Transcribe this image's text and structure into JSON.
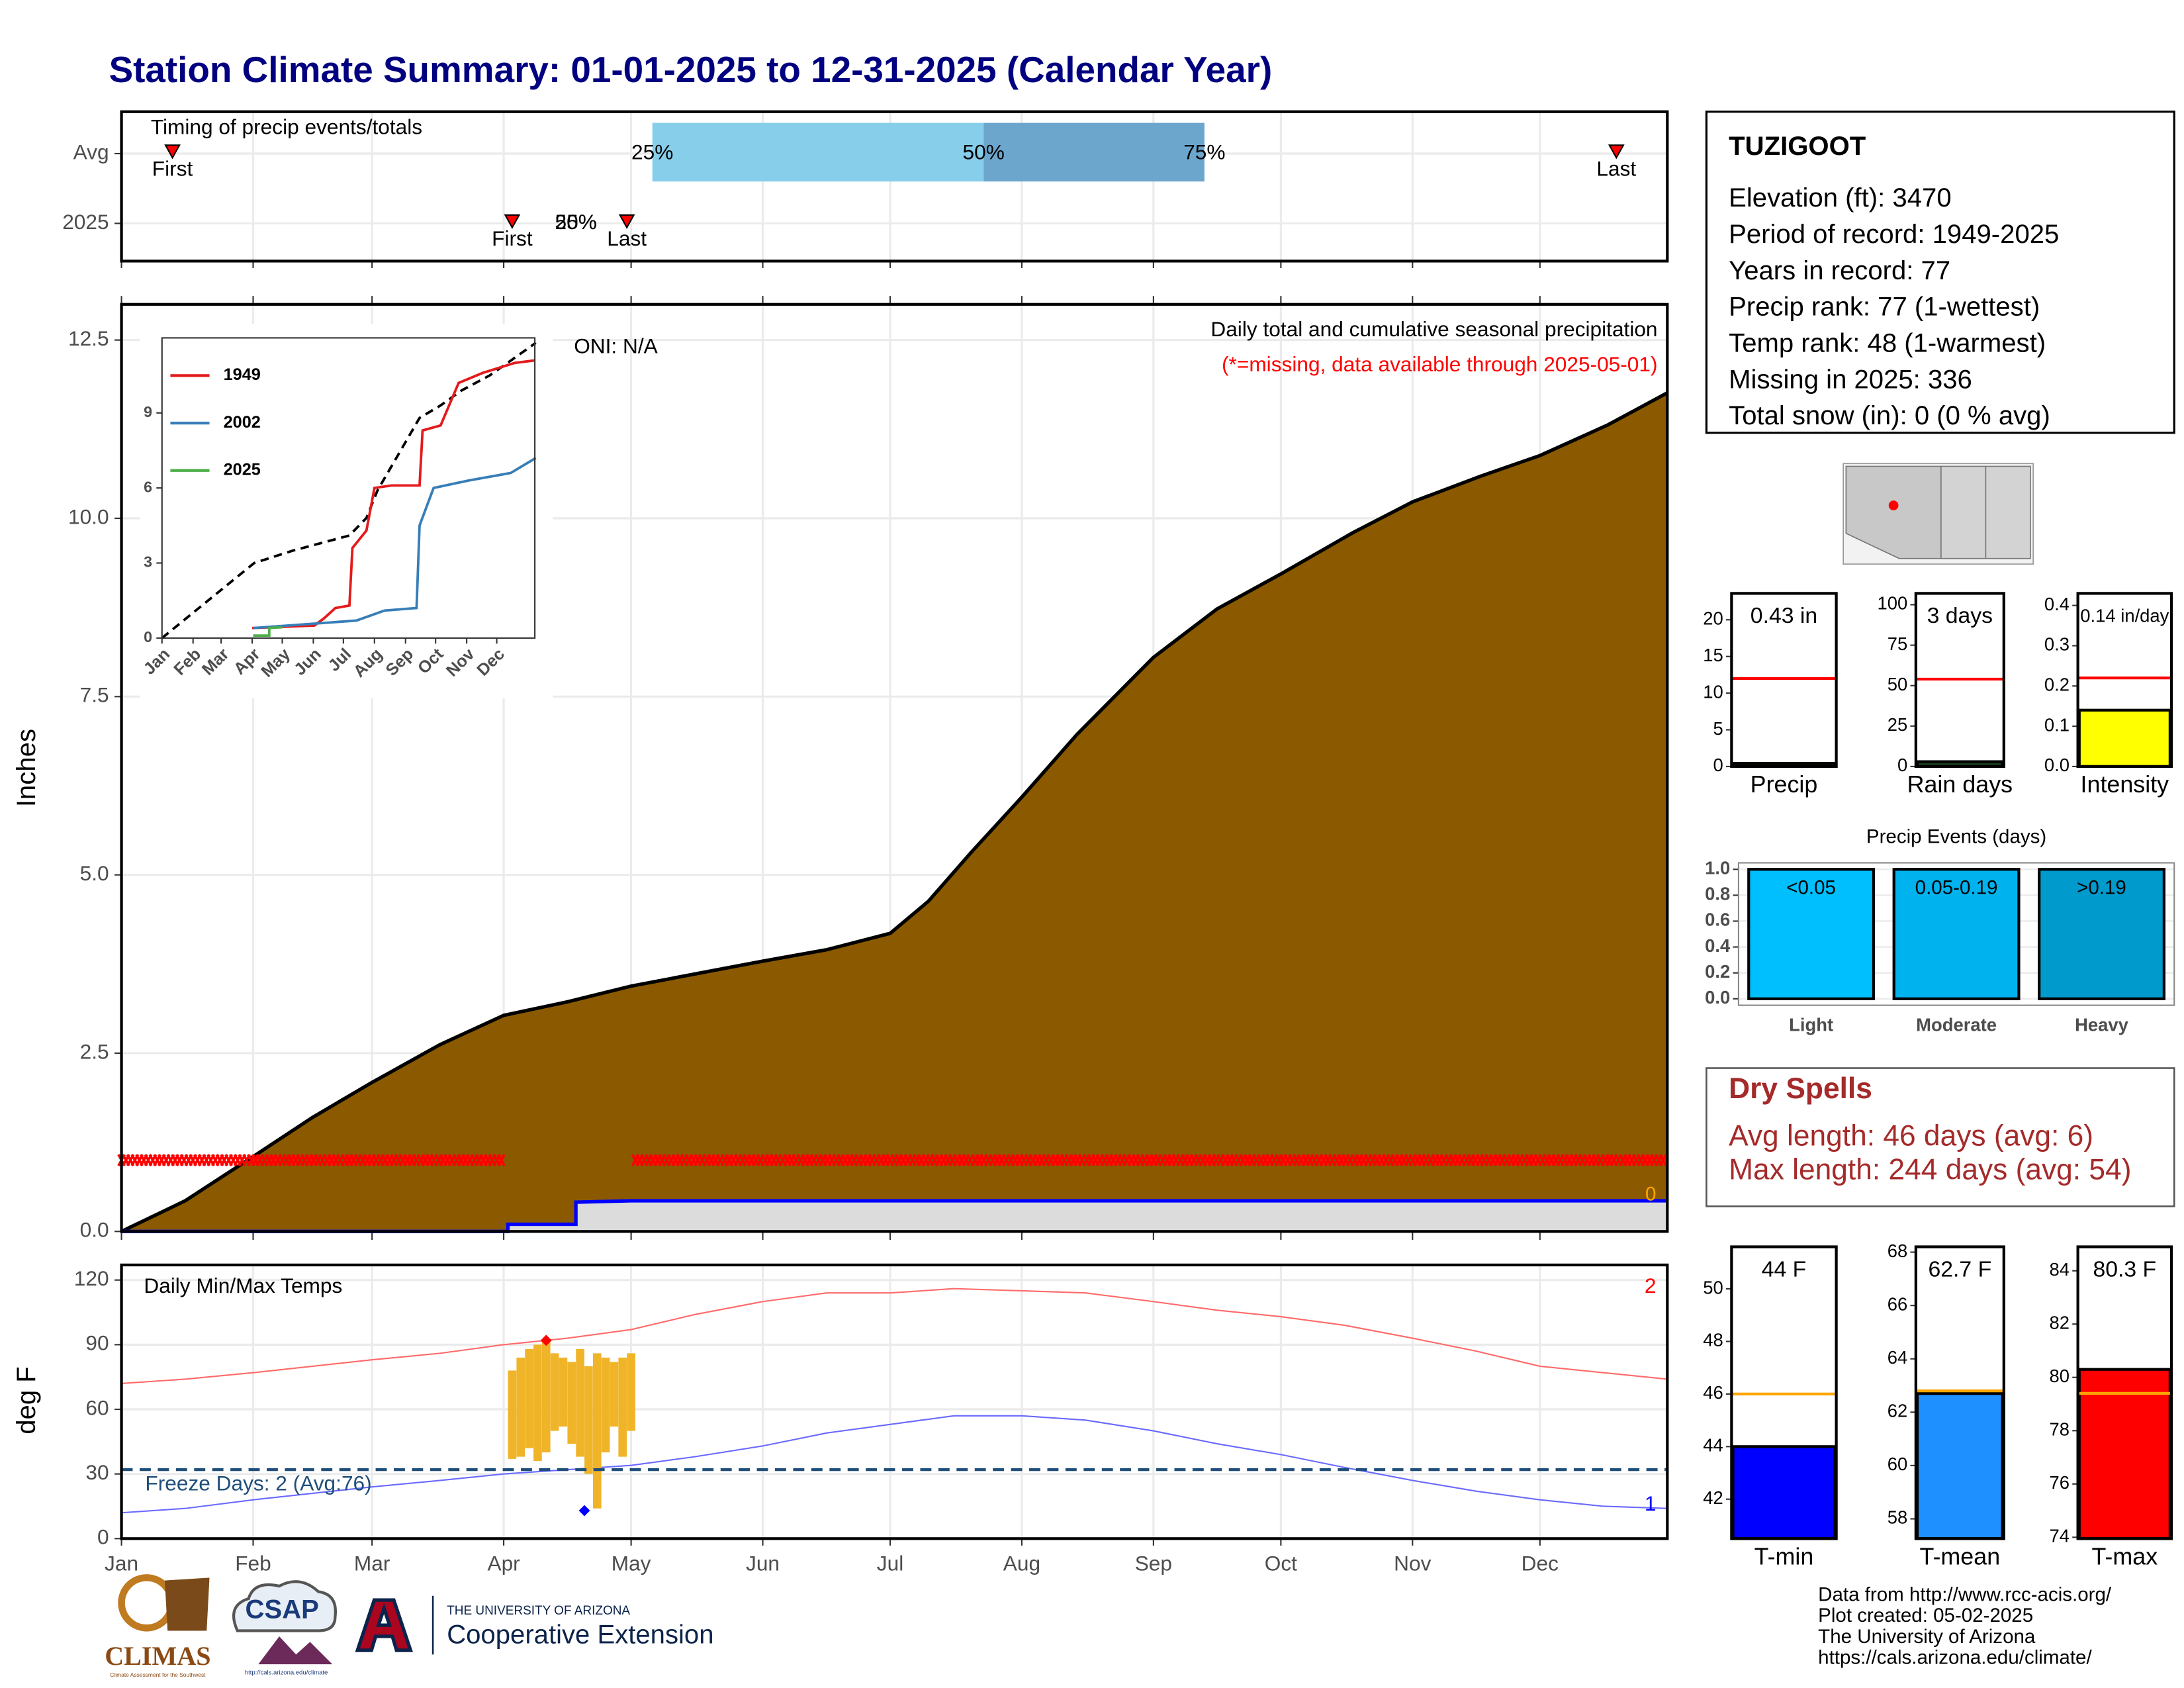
{
  "title": "Station Climate Summary: 01-01-2025 to 12-31-2025 (Calendar Year)",
  "chart_data": [
    {
      "type": "timing",
      "title": "Timing of precip events/totals",
      "xlim": [
        0,
        364
      ],
      "colors": [
        "#87ceeb",
        "#6ca6cd"
      ],
      "marker_color": "#ff0000",
      "rows": [
        {
          "label": "Avg",
          "events": [
            {
              "label": "First",
              "day": 12
            },
            {
              "label": "Last",
              "day": 352
            }
          ],
          "quantiles": [
            {
              "label": "25%",
              "day": 125
            },
            {
              "label": "50%",
              "day": 203
            },
            {
              "label": "75%",
              "day": 255
            }
          ]
        },
        {
          "label": "2025",
          "events": [
            {
              "label": "First",
              "day": 92
            },
            {
              "label": "Last",
              "day": 119
            }
          ],
          "quantiles": [
            {
              "label": "25%",
              "day": 107
            },
            {
              "label": "50%",
              "day": 107
            }
          ]
        }
      ]
    },
    {
      "type": "area",
      "title": "Daily total and cumulative seasonal precipitation",
      "subtitle": "(*=missing, data available through 2025-05-01)",
      "annotation": "ONI: N/A",
      "ylabel": "Inches",
      "xlim": [
        0,
        364
      ],
      "ylim": [
        0,
        13
      ],
      "yticks": [
        {
          "value": 0,
          "label": "0.0"
        },
        2.5,
        {
          "value": 5,
          "label": "5.0"
        },
        7.5,
        {
          "value": 10,
          "label": "10.0"
        },
        12.5
      ],
      "grid": true,
      "series": [
        {
          "color": "#8b5a00",
          "x": [
            0,
            15,
            31,
            45,
            59,
            75,
            90,
            105,
            120,
            135,
            151,
            166,
            181,
            190,
            200,
            212,
            225,
            243,
            258,
            273,
            290,
            304,
            320,
            334,
            350,
            364
          ],
          "values": [
            0,
            0.43,
            1.05,
            1.6,
            2.09,
            2.62,
            3.03,
            3.22,
            3.44,
            3.61,
            3.79,
            3.95,
            4.18,
            4.63,
            5.31,
            6.09,
            6.97,
            8.05,
            8.73,
            9.22,
            9.8,
            10.23,
            10.59,
            10.88,
            11.31,
            11.76
          ]
        },
        {
          "color": "#0000ff",
          "fill": "#dcdcdc",
          "x": [
            0,
            91,
            91,
            107,
            107,
            120,
            364
          ],
          "values": [
            0,
            0,
            0.1,
            0.1,
            0.41,
            0.43,
            0.43
          ],
          "end_label": "0",
          "end_label_color": "#ffa500"
        }
      ],
      "missing": {
        "ranges": [
          [
            0,
            90
          ],
          [
            121,
            364
          ]
        ],
        "y": 1,
        "color": "#ff0000"
      }
    },
    {
      "type": "line",
      "xlim": [
        0,
        372
      ],
      "ylim": [
        0,
        12
      ],
      "yticks": [
        0,
        3,
        6,
        9
      ],
      "xticks": [
        {
          "value": 0,
          "label": "Jan"
        },
        {
          "value": 31,
          "label": "Feb"
        },
        {
          "value": 59,
          "label": "Mar"
        },
        {
          "value": 90,
          "label": "Apr"
        },
        {
          "value": 120,
          "label": "May"
        },
        {
          "value": 151,
          "label": "Jun"
        },
        {
          "value": 181,
          "label": "Jul"
        },
        {
          "value": 212,
          "label": "Aug"
        },
        {
          "value": 243,
          "label": "Sep"
        },
        {
          "value": 273,
          "label": "Oct"
        },
        {
          "value": 304,
          "label": "Nov"
        },
        {
          "value": 334,
          "label": "Dec"
        }
      ],
      "series": [
        {
          "name": "1949",
          "color": "#e41a1c",
          "x": [
            90,
            152,
            162,
            173,
            187,
            190,
            204,
            212,
            229,
            257,
            260,
            278,
            296,
            320,
            352,
            372
          ],
          "values": [
            0.4,
            0.5,
            0.8,
            1.2,
            1.3,
            3.6,
            4.3,
            6.0,
            6.1,
            6.1,
            8.3,
            8.5,
            10.2,
            10.6,
            11.0,
            11.1
          ]
        },
        {
          "name": "2002",
          "color": "#377eb8",
          "x": [
            91,
            194,
            222,
            254,
            257,
            271,
            306,
            348,
            373
          ],
          "values": [
            0.4,
            0.7,
            1.1,
            1.2,
            4.5,
            6.0,
            6.3,
            6.6,
            7.2
          ]
        },
        {
          "name": "2025",
          "color": "#4daf4a",
          "x": [
            91,
            107,
            107,
            120
          ],
          "values": [
            0.1,
            0.1,
            0.4,
            0.43
          ]
        }
      ],
      "average": {
        "color": "#000000",
        "x": [
          0,
          92,
          131,
          187,
          204,
          215,
          257,
          278,
          299,
          327,
          373
        ],
        "values": [
          0,
          3.0,
          3.5,
          4.1,
          4.8,
          5.9,
          8.8,
          9.3,
          9.9,
          10.5,
          11.8
        ]
      }
    },
    {
      "type": "temperature",
      "title": "Daily Min/Max Temps",
      "ylabel": "deg F",
      "xlim": [
        0,
        364
      ],
      "ylim": [
        0,
        127
      ],
      "yticks": [
        0,
        30,
        60,
        90,
        120
      ],
      "grid": true,
      "xticks": [
        {
          "value": 0,
          "label": "Jan"
        },
        {
          "value": 31,
          "label": "Feb"
        },
        {
          "value": 59,
          "label": "Mar"
        },
        {
          "value": 90,
          "label": "Apr"
        },
        {
          "value": 120,
          "label": "May"
        },
        {
          "value": 151,
          "label": "Jun"
        },
        {
          "value": 181,
          "label": "Jul"
        },
        {
          "value": 212,
          "label": "Aug"
        },
        {
          "value": 243,
          "label": "Sep"
        },
        {
          "value": 273,
          "label": "Oct"
        },
        {
          "value": 304,
          "label": "Nov"
        },
        {
          "value": 334,
          "label": "Dec"
        }
      ],
      "x": [
        0,
        15,
        31,
        45,
        59,
        75,
        90,
        105,
        120,
        135,
        151,
        166,
        181,
        196,
        212,
        227,
        243,
        258,
        273,
        288,
        304,
        319,
        334,
        349,
        364
      ],
      "series": [
        {
          "color": "#ff6a6a",
          "values": [
            72,
            74,
            77,
            80,
            83,
            86,
            90,
            93,
            97,
            104,
            110,
            114,
            114,
            116,
            115,
            114,
            110,
            106,
            103,
            99,
            93,
            87,
            80,
            77,
            74
          ],
          "count_label": "2"
        },
        {
          "color": "#6a6aff",
          "values": [
            12,
            14,
            18,
            21,
            24,
            27,
            30,
            32,
            34,
            38,
            43,
            49,
            53,
            57,
            57,
            55,
            50,
            44,
            39,
            33,
            27,
            22,
            18,
            15,
            14
          ],
          "count_label": "1"
        }
      ],
      "observed": {
        "color": "#f0b429",
        "x": [
          92,
          94,
          96,
          98,
          100,
          102,
          104,
          106,
          108,
          110,
          112,
          114,
          116,
          118,
          120
        ],
        "tmax": [
          78,
          84,
          88,
          90,
          92,
          86,
          84,
          82,
          88,
          80,
          86,
          84,
          82,
          84,
          86
        ],
        "tmin": [
          37,
          38,
          42,
          36,
          40,
          50,
          52,
          44,
          38,
          30,
          14,
          40,
          52,
          38,
          50
        ]
      },
      "freeze": {
        "value": 32,
        "label": "Freeze Days: 2 (Avg:76)",
        "color": "#1f4e79"
      },
      "records": [
        {
          "x": 100,
          "value": 92,
          "color": "#ff0000"
        },
        {
          "x": 109,
          "value": 13,
          "color": "#0000ff"
        }
      ]
    },
    {
      "type": "bar",
      "categories": [
        "Precip"
      ],
      "values": [
        0.43
      ],
      "value_labels": [
        "0.43 in"
      ],
      "avg": [
        12
      ],
      "avg_color": "#ff0000",
      "color": "#2d2d00",
      "ylim": [
        0,
        23.6
      ],
      "yticks": [
        0,
        5,
        10,
        15,
        20
      ]
    },
    {
      "type": "bar",
      "categories": [
        "Rain days"
      ],
      "values": [
        3
      ],
      "value_labels": [
        "3 days"
      ],
      "avg": [
        54
      ],
      "avg_color": "#ff0000",
      "color": "#1a3d1a",
      "ylim": [
        0,
        107
      ],
      "yticks": [
        0,
        25,
        50,
        75,
        100
      ]
    },
    {
      "type": "bar",
      "categories": [
        "Intensity"
      ],
      "values": [
        0.14
      ],
      "value_labels": [
        "0.14 in/day"
      ],
      "avg": [
        0.22
      ],
      "avg_color": "#ff0000",
      "color": "#ffff00",
      "ylim": [
        0,
        0.43
      ],
      "yticks": [
        {
          "value": 0,
          "label": "0.0"
        },
        0.1,
        0.2,
        0.3,
        0.4
      ]
    },
    {
      "type": "bar",
      "title": "Precip Events (days)",
      "categories": [
        "Light",
        "Moderate",
        "Heavy"
      ],
      "values": [
        1,
        1,
        1
      ],
      "bar_labels": [
        "<0.05",
        "0.05-0.19",
        ">0.19"
      ],
      "colors": [
        "#00bfff",
        "#00b2ee",
        "#009acd"
      ],
      "ylim": [
        -0.05,
        1.05
      ],
      "yticks": [
        {
          "value": 0,
          "label": "0.0"
        },
        0.2,
        0.4,
        0.6,
        0.8,
        {
          "value": 1,
          "label": "1.0"
        }
      ],
      "grid": true
    },
    {
      "type": "bar",
      "categories": [
        "T-min"
      ],
      "values": [
        44
      ],
      "value_labels": [
        "44 F"
      ],
      "avg": [
        46
      ],
      "avg_color": "#ffa500",
      "color": "#0000ff",
      "ylim": [
        40.5,
        51.6
      ],
      "yticks": [
        42,
        44,
        46,
        48,
        50
      ]
    },
    {
      "type": "bar",
      "categories": [
        "T-mean"
      ],
      "values": [
        62.7
      ],
      "value_labels": [
        "62.7 F"
      ],
      "avg": [
        62.8
      ],
      "avg_color": "#ffa500",
      "color": "#1e90ff",
      "ylim": [
        57.26,
        68.2
      ],
      "yticks": [
        58,
        60,
        62,
        64,
        66,
        68
      ]
    },
    {
      "type": "bar",
      "categories": [
        "T-max"
      ],
      "values": [
        80.3
      ],
      "value_labels": [
        "80.3 F"
      ],
      "avg": [
        79.4
      ],
      "avg_color": "#ffa500",
      "color": "#ff0000",
      "ylim": [
        73.95,
        84.9
      ],
      "yticks": [
        74,
        76,
        78,
        80,
        82,
        84
      ]
    }
  ],
  "station": {
    "name": "TUZIGOOT",
    "lines": [
      "Elevation (ft): 3470",
      "Period of record: 1949-2025",
      "Years in record: 77",
      "Precip rank: 77 (1-wettest)",
      "Temp rank: 48 (1-warmest)",
      "Missing in 2025: 336",
      "Total snow (in): 0 (0 % avg)"
    ]
  },
  "dry_spells": {
    "title": "Dry Spells",
    "lines": [
      "Avg length: 46 days (avg: 6)",
      "Max length: 244 days (avg: 54)"
    ]
  },
  "footer": [
    "Data from http://www.rcc-acis.org/",
    "Plot created: 05-02-2025",
    "The University of Arizona",
    "https://cals.arizona.edu/climate/"
  ],
  "logos": {
    "climas": "CLIMAS",
    "climas_tagline": "Climate Assessment for the Southwest",
    "csap": "CSAP",
    "csap_url": "http://cals.arizona.edu/climate",
    "ua_small": "THE UNIVERSITY OF ARIZONA",
    "ua_large": "Cooperative Extension"
  }
}
